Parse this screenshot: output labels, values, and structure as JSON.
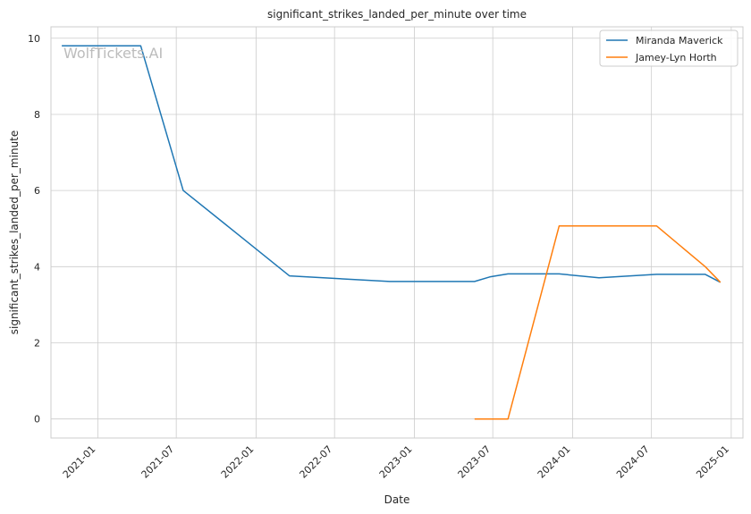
{
  "chart_data": {
    "type": "line",
    "title": "significant_strikes_landed_per_minute over time",
    "xlabel": "Date",
    "ylabel": "significant_strikes_landed_per_minute",
    "watermark": "WolfTickets.AI",
    "x_ticks": [
      "2021-01",
      "2021-07",
      "2022-01",
      "2022-07",
      "2023-01",
      "2023-07",
      "2024-01",
      "2024-07",
      "2025-01"
    ],
    "y_ticks": [
      "0",
      "2",
      "4",
      "6",
      "8",
      "10"
    ],
    "xlim": [
      "2020-09-15",
      "2025-01-28"
    ],
    "ylim": [
      -0.5,
      10.3
    ],
    "grid": true,
    "legend_position": "top-right",
    "series": [
      {
        "name": "Miranda Maverick",
        "color": "#1f77b4",
        "x": [
          "2020-10-10",
          "2021-04-10",
          "2021-07-17",
          "2021-12-01",
          "2022-03-19",
          "2022-11-05",
          "2023-05-20",
          "2023-06-24",
          "2023-08-05",
          "2023-12-01",
          "2024-03-02",
          "2024-07-13",
          "2024-11-02",
          "2024-12-07"
        ],
        "values": [
          9.8,
          9.8,
          6.0,
          4.75,
          3.76,
          3.61,
          3.61,
          3.73,
          3.81,
          3.81,
          3.71,
          3.8,
          3.8,
          3.59
        ]
      },
      {
        "name": "Jamey-Lyn Horth",
        "color": "#ff7f0e",
        "x": [
          "2023-05-20",
          "2023-08-05",
          "2023-12-01",
          "2024-07-13",
          "2024-11-02",
          "2024-12-07"
        ],
        "values": [
          0.0,
          0.0,
          5.07,
          5.07,
          4.0,
          3.59
        ]
      }
    ]
  }
}
